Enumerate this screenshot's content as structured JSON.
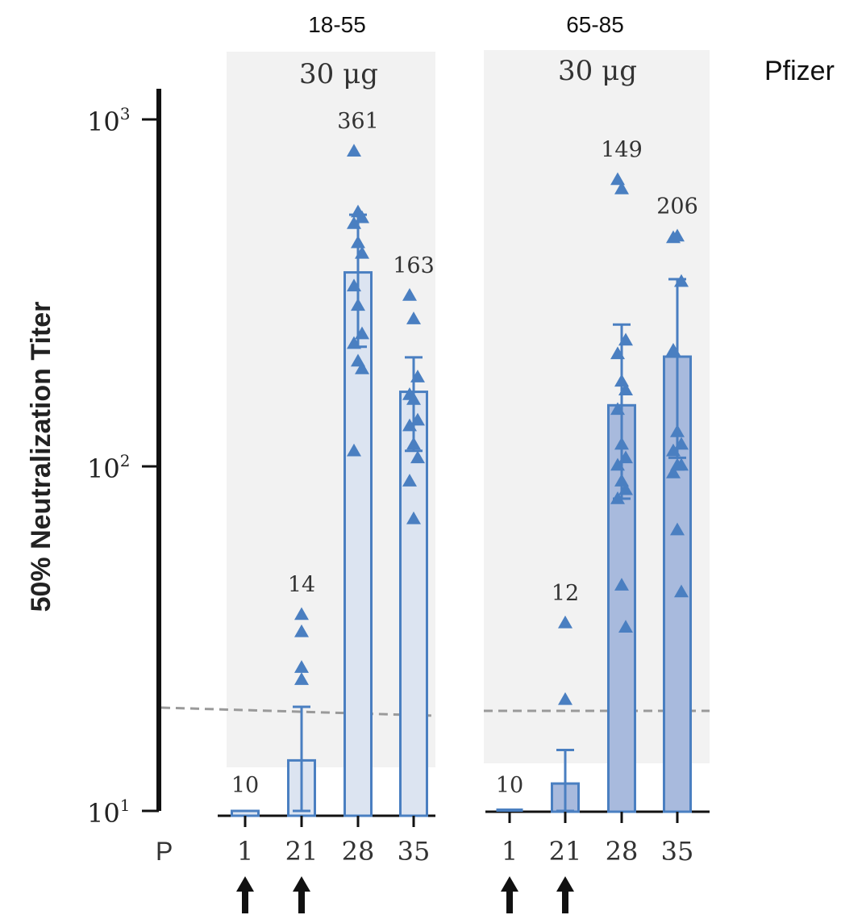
{
  "brand_label": "Pfizer",
  "y_axis_label": "50% Neutralization Titer",
  "y_ticks": [
    {
      "base": "10",
      "exp": "1",
      "value": 10
    },
    {
      "base": "10",
      "exp": "2",
      "value": 100
    },
    {
      "base": "10",
      "exp": "3",
      "value": 1000
    }
  ],
  "x_axis_prefix": "P",
  "colors": {
    "accent": "#4a7fc1",
    "panel_bg": "#f2f2f2",
    "bar_fill_light": "#dce4f1",
    "bar_fill_dark": "#a8badd",
    "threshold_line": "#9a9a9a",
    "axis": "#111111"
  },
  "chart_data": [
    {
      "type": "bar",
      "group_label": "18-55",
      "dose_label": "30 μg",
      "categories": [
        "1",
        "21",
        "28",
        "35"
      ],
      "dose_days": [
        "1",
        "21"
      ],
      "yscale": "log",
      "ylim": [
        10,
        1000
      ],
      "threshold": 20,
      "values": [
        10,
        14,
        361,
        163
      ],
      "value_labels": [
        "10",
        "14",
        "361",
        "163"
      ],
      "error_upper": [
        10,
        20,
        530,
        205
      ],
      "error_lower": [
        10,
        10,
        220,
        110
      ],
      "points": [
        [
          10
        ],
        [
          37,
          33,
          26,
          24,
          10
        ],
        [
          810,
          540,
          520,
          500,
          440,
          410,
          330,
          290,
          240,
          225,
          200,
          190,
          110
        ],
        [
          310,
          265,
          180,
          160,
          155,
          135,
          130,
          115,
          105,
          90,
          70
        ]
      ]
    },
    {
      "type": "bar",
      "group_label": "65-85",
      "dose_label": "30 μg",
      "categories": [
        "1",
        "21",
        "28",
        "35"
      ],
      "dose_days": [
        "1",
        "21"
      ],
      "yscale": "log",
      "ylim": [
        10,
        1000
      ],
      "threshold": 20,
      "values": [
        10,
        12,
        149,
        206
      ],
      "value_labels": [
        "10",
        "12",
        "149",
        "206"
      ],
      "error_upper": [
        10,
        15,
        255,
        345
      ],
      "error_lower": [
        10,
        10,
        80,
        105
      ],
      "points": [
        [
          10
        ],
        [
          35,
          21,
          10
        ],
        [
          670,
          630,
          230,
          210,
          175,
          165,
          145,
          115,
          105,
          100,
          90,
          85,
          80,
          45,
          34
        ],
        [
          455,
          460,
          340,
          215,
          125,
          115,
          110,
          100,
          100,
          95,
          65,
          43
        ]
      ]
    }
  ]
}
